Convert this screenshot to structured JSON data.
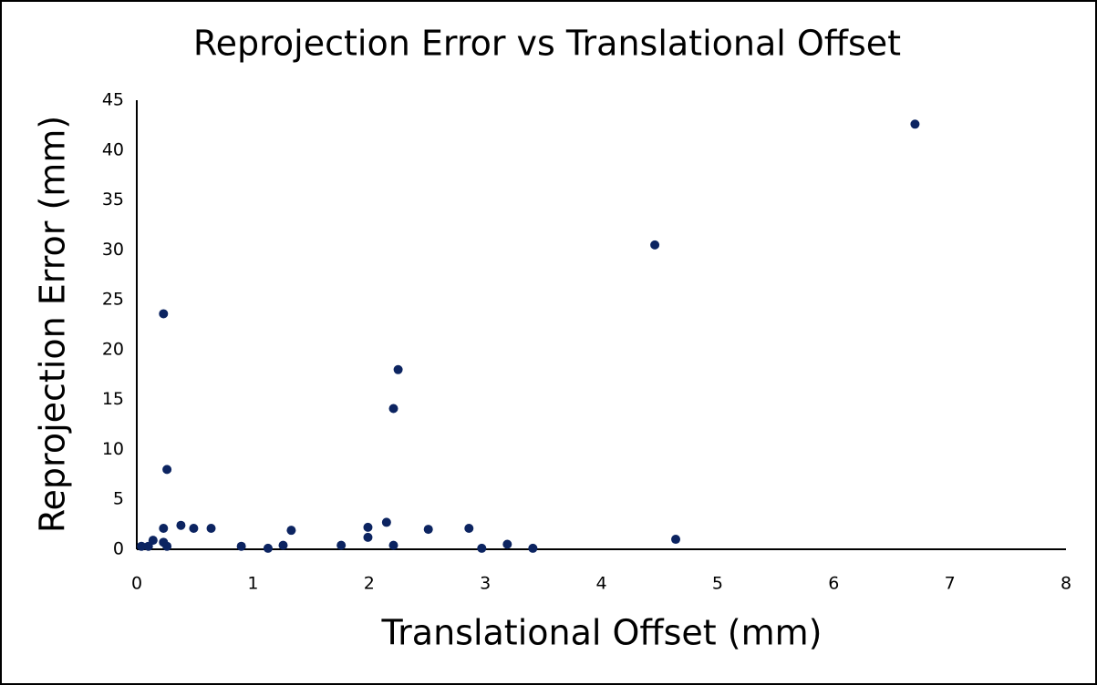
{
  "chart_data": {
    "type": "scatter",
    "title": "Reprojection Error vs Translational Offset",
    "x_label": "Translational Offset (mm)",
    "y_label": "Reprojection Error (mm)",
    "color": "#0c2461",
    "x": [
      0.04,
      0.1,
      0.14,
      0.23,
      0.26,
      0.23,
      0.38,
      0.49,
      0.64,
      0.23,
      0.26,
      0.9,
      1.13,
      1.26,
      1.33,
      1.76,
      1.99,
      1.99,
      2.15,
      2.21,
      2.21,
      2.25,
      2.51,
      2.86,
      2.97,
      3.19,
      3.41,
      4.46,
      4.64,
      6.7
    ],
    "y": [
      0.3,
      0.3,
      0.9,
      0.7,
      0.3,
      2.1,
      2.4,
      2.1,
      2.1,
      23.6,
      8.0,
      0.3,
      0.1,
      0.4,
      1.9,
      0.4,
      2.2,
      1.2,
      2.7,
      0.4,
      14.1,
      18.0,
      2.0,
      2.1,
      0.1,
      0.5,
      0.1,
      30.5,
      1.0,
      42.6
    ],
    "xlim": [
      0,
      8
    ],
    "xticks": [
      0,
      1,
      2,
      3,
      4,
      5,
      6,
      7,
      8
    ],
    "ylim": [
      0,
      45
    ],
    "yticks": [
      0,
      5,
      10,
      15,
      20,
      25,
      30,
      35,
      40,
      45
    ]
  }
}
